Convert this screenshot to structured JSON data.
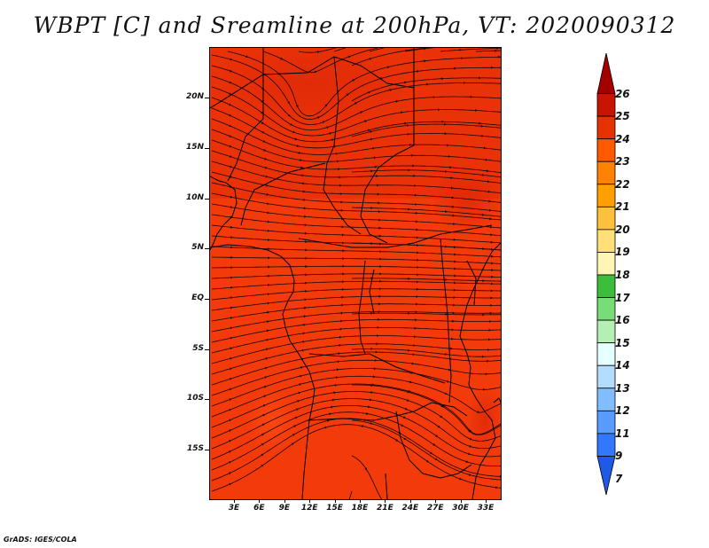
{
  "title": "WBPT [C] and Sreamline at 200hPa, VT: 2020090312",
  "credit": "GrADS: IGES/COLA",
  "map": {
    "lat_labels": [
      "20N",
      "15N",
      "10N",
      "5N",
      "EQ",
      "5S",
      "10S",
      "15S"
    ],
    "lon_labels": [
      "3E",
      "6E",
      "9E",
      "12E",
      "15E",
      "18E",
      "21E",
      "24E",
      "27E",
      "30E",
      "33E"
    ],
    "field_color": "#f23a0a"
  },
  "colorbar": {
    "labels": [
      "26",
      "25",
      "24",
      "23",
      "22",
      "21",
      "20",
      "19",
      "18",
      "17",
      "16",
      "15",
      "14",
      "13",
      "12",
      "11",
      "9",
      "7"
    ],
    "colors": [
      "#a50000",
      "#c81400",
      "#e63200",
      "#ff5a00",
      "#ff8200",
      "#ffa000",
      "#ffc03c",
      "#ffe078",
      "#fff5b4",
      "#3cbe3c",
      "#78dc78",
      "#b4f0b4",
      "#e6ffff",
      "#b4dcff",
      "#82beff",
      "#5a9bff",
      "#3278ff",
      "#1e5ae6"
    ]
  }
}
